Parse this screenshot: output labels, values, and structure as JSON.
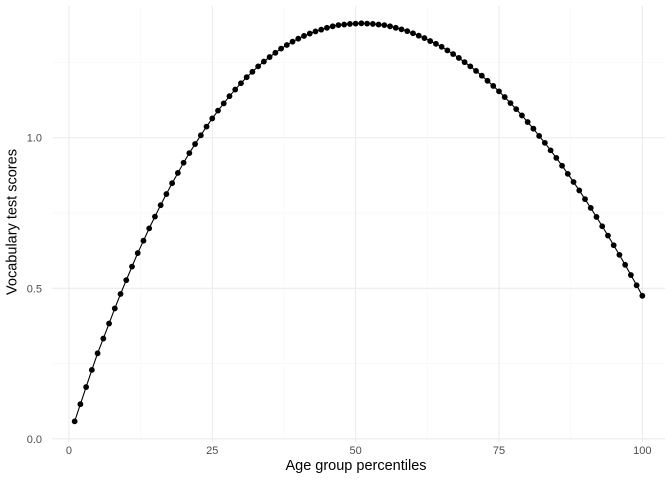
{
  "chart_data": {
    "type": "line",
    "title": "",
    "xlabel": "Age group percentiles",
    "ylabel": "Vocabulary test scores",
    "xlim": [
      -2.95,
      103.95
    ],
    "ylim": [
      -0.0105,
      1.4375
    ],
    "x_ticks": [
      0,
      25,
      50,
      75,
      100
    ],
    "x_tick_labels": [
      "0",
      "25",
      "50",
      "75",
      "100"
    ],
    "y_ticks": [
      0.0,
      0.5,
      1.0
    ],
    "y_tick_labels": [
      "0.0",
      "0.5",
      "1.0"
    ],
    "grid": true,
    "legend": "none",
    "line_color": "#000000",
    "point_color": "#000000",
    "x": [
      1,
      2,
      3,
      4,
      5,
      6,
      7,
      8,
      9,
      10,
      11,
      12,
      13,
      14,
      15,
      16,
      17,
      18,
      19,
      20,
      21,
      22,
      23,
      24,
      25,
      26,
      27,
      28,
      29,
      30,
      31,
      32,
      33,
      34,
      35,
      36,
      37,
      38,
      39,
      40,
      41,
      42,
      43,
      44,
      45,
      46,
      47,
      48,
      49,
      50,
      51,
      52,
      53,
      54,
      55,
      56,
      57,
      58,
      59,
      60,
      61,
      62,
      63,
      64,
      65,
      66,
      67,
      68,
      69,
      70,
      71,
      72,
      73,
      74,
      75,
      76,
      77,
      78,
      79,
      80,
      81,
      82,
      83,
      84,
      85,
      86,
      87,
      88,
      89,
      90,
      91,
      92,
      93,
      94,
      95,
      96,
      97,
      98,
      99,
      100
    ],
    "y": [
      0.058,
      0.115,
      0.172,
      0.229,
      0.284,
      0.333,
      0.383,
      0.433,
      0.481,
      0.527,
      0.572,
      0.617,
      0.658,
      0.699,
      0.738,
      0.776,
      0.813,
      0.849,
      0.883,
      0.917,
      0.949,
      0.979,
      1.008,
      1.037,
      1.064,
      1.09,
      1.114,
      1.138,
      1.16,
      1.181,
      1.201,
      1.219,
      1.237,
      1.253,
      1.268,
      1.282,
      1.296,
      1.308,
      1.319,
      1.329,
      1.338,
      1.346,
      1.353,
      1.359,
      1.365,
      1.37,
      1.374,
      1.376,
      1.378,
      1.379,
      1.38,
      1.379,
      1.378,
      1.376,
      1.374,
      1.37,
      1.365,
      1.36,
      1.354,
      1.347,
      1.339,
      1.331,
      1.321,
      1.312,
      1.302,
      1.29,
      1.278,
      1.265,
      1.251,
      1.237,
      1.222,
      1.206,
      1.189,
      1.172,
      1.154,
      1.135,
      1.115,
      1.095,
      1.074,
      1.052,
      1.03,
      1.006,
      0.983,
      0.958,
      0.933,
      0.907,
      0.88,
      0.853,
      0.825,
      0.796,
      0.767,
      0.737,
      0.706,
      0.675,
      0.643,
      0.611,
      0.578,
      0.544,
      0.51,
      0.475
    ]
  }
}
